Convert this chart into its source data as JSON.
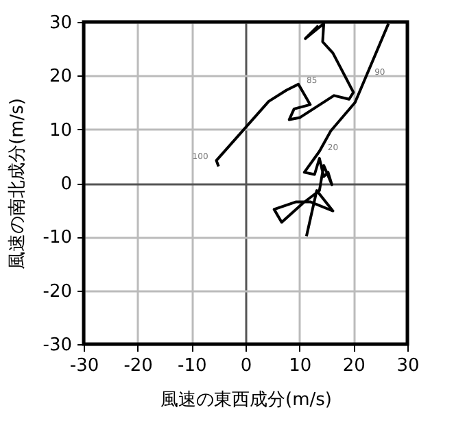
{
  "chart_data": {
    "type": "line",
    "xlabel": "風速の東西成分(m/s)",
    "ylabel": "風速の南北成分(m/s)",
    "xlim": [
      -30,
      30
    ],
    "ylim": [
      -30,
      30
    ],
    "xticks": [
      -30,
      -20,
      -10,
      0,
      10,
      20,
      30
    ],
    "yticks": [
      -30,
      -20,
      -10,
      0,
      10,
      20,
      30
    ],
    "grid": true,
    "marker": "none",
    "line_style": "solid",
    "series": [
      {
        "color": "#000000",
        "x": [
          11.3,
          13.2,
          16.2,
          12.0,
          9.4,
          5.3,
          6.7,
          10.7,
          13.7,
          14.5,
          16.0,
          15.3,
          14.5,
          13.7,
          12.8,
          10.9,
          13.7,
          15.8,
          20.3,
          26.5
        ],
        "values": [
          -9.9,
          -1.4,
          -5.2,
          -3.5,
          -3.5,
          -4.9,
          -7.3,
          -3.7,
          -1.4,
          3.3,
          -0.3,
          2.0,
          1.2,
          4.6,
          1.6,
          2.0,
          5.9,
          9.7,
          15.0,
          29.7
        ]
      },
      {
        "color": "#000000",
        "x": [
          13.5,
          11.1,
          14.5,
          14.3,
          16.2,
          20.0,
          19.2,
          16.4,
          10.1,
          8.1,
          9.0,
          12.0,
          9.8,
          7.6,
          4.3,
          -5.4,
          -5.0
        ],
        "values": [
          29.3,
          26.9,
          29.7,
          26.3,
          24.2,
          16.9,
          15.6,
          16.3,
          12.2,
          11.8,
          13.8,
          14.6,
          18.4,
          17.3,
          15.2,
          4.2,
          3.1
        ]
      }
    ],
    "annotations": [
      {
        "text": "100",
        "x": -5.4,
        "y": 4.2
      },
      {
        "text": "85",
        "x": 9.8,
        "y": 18.4
      },
      {
        "text": "90",
        "x": 22.4,
        "y": 19.9
      },
      {
        "text": "20",
        "x": 13.7,
        "y": 5.9
      }
    ]
  }
}
